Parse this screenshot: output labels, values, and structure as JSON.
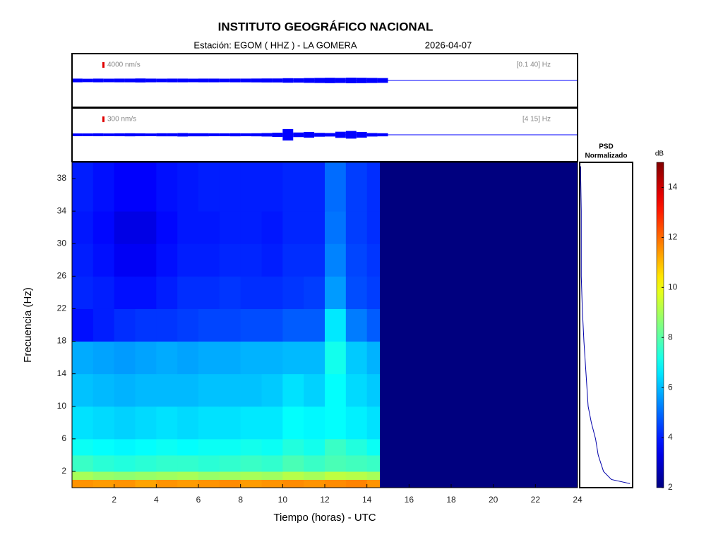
{
  "header": {
    "title": "INSTITUTO GEOGRÁFICO NACIONAL",
    "station": "Estación:  EGOM ( HHZ ) - LA GOMERA",
    "date": "2026-04-07"
  },
  "chart_data": [
    {
      "type": "trace",
      "scale": {
        "value": 4000,
        "label": "4000 nm/s"
      },
      "band": "[0.1 40] Hz",
      "color": "#0000ff",
      "ylim": [
        -19000,
        19000
      ],
      "xlim": [
        0,
        24
      ],
      "x": [
        0,
        0.5,
        1,
        1.5,
        2,
        2.5,
        3,
        3.5,
        4,
        4.5,
        5,
        5.5,
        6,
        6.5,
        7,
        7.5,
        8,
        8.5,
        9,
        9.5,
        10,
        10.5,
        11,
        11.5,
        12,
        12.5,
        13,
        13.5,
        14,
        14.5
      ],
      "values": [
        1300,
        1200,
        1300,
        1250,
        1300,
        1300,
        1400,
        1300,
        1250,
        1300,
        1300,
        1250,
        1300,
        1300,
        1250,
        1300,
        1300,
        1350,
        1400,
        1400,
        1600,
        1500,
        1700,
        1800,
        1900,
        1800,
        2000,
        1900,
        1800,
        1700
      ]
    },
    {
      "type": "trace",
      "scale": {
        "value": 300,
        "label": "300 nm/s"
      },
      "band": "[4 15] Hz",
      "color": "#0000ff",
      "ylim": [
        -1400,
        1400
      ],
      "xlim": [
        0,
        24
      ],
      "x": [
        0,
        0.5,
        1,
        1.5,
        2,
        2.5,
        3,
        3.5,
        4,
        4.5,
        5,
        5.5,
        6,
        6.5,
        7,
        7.5,
        8,
        8.5,
        9,
        9.5,
        10,
        10.5,
        11,
        11.5,
        12,
        12.5,
        13,
        13.5,
        14,
        14.5
      ],
      "values": [
        70,
        70,
        75,
        70,
        75,
        80,
        75,
        70,
        80,
        80,
        90,
        80,
        80,
        75,
        75,
        80,
        75,
        80,
        90,
        110,
        300,
        120,
        150,
        100,
        90,
        160,
        200,
        150,
        90,
        80
      ]
    },
    {
      "type": "heatmap",
      "xlabel": "Tiempo (horas) - UTC",
      "ylabel": "Frecuencia  (Hz)",
      "xlim": [
        0,
        24
      ],
      "xticks": [
        2,
        4,
        6,
        8,
        10,
        12,
        14,
        16,
        18,
        20,
        22,
        24
      ],
      "ylim": [
        0,
        40
      ],
      "yticks": [
        2,
        6,
        10,
        14,
        18,
        22,
        26,
        30,
        34,
        38
      ],
      "time_edges": [
        0,
        1,
        2,
        3,
        4,
        5,
        6,
        7,
        8,
        9,
        10,
        11,
        12,
        13,
        14,
        14.6
      ],
      "freq_edges": [
        0,
        1,
        2,
        4,
        6,
        10,
        14,
        18,
        22,
        26,
        30,
        34,
        40
      ],
      "colormap": "jet",
      "clim": [
        2,
        15
      ],
      "cticks": [
        2,
        4,
        6,
        8,
        10,
        12,
        14
      ],
      "clabel": "dB",
      "z": [
        [
          11.5,
          11.4,
          11.5,
          11.3,
          11.5,
          11.4,
          11.5,
          11.6,
          11.4,
          11.5,
          11.6,
          11.5,
          11.6,
          11.7,
          11.5
        ],
        [
          9,
          8.8,
          8.7,
          8.8,
          8.9,
          9,
          8.8,
          8.9,
          9,
          8.9,
          9.2,
          9,
          9.3,
          9.2,
          9
        ],
        [
          7.6,
          7.4,
          7.3,
          7.4,
          7.5,
          7.5,
          7.4,
          7.5,
          7.6,
          7.5,
          7.8,
          7.6,
          7.8,
          7.7,
          7.6
        ],
        [
          7,
          6.9,
          6.8,
          6.9,
          7,
          6.9,
          7,
          7,
          7.1,
          7,
          7.3,
          7.1,
          7.6,
          7.3,
          7
        ],
        [
          6.5,
          6.4,
          6.3,
          6.4,
          6.5,
          6.4,
          6.5,
          6.5,
          6.6,
          6.6,
          6.9,
          6.8,
          6.9,
          6.7,
          6.5
        ],
        [
          6.1,
          6,
          5.9,
          6,
          6,
          6,
          6.1,
          6.1,
          6.1,
          6.2,
          6.5,
          6.3,
          6.9,
          6.4,
          6.2
        ],
        [
          5.8,
          5.7,
          5.6,
          5.7,
          5.8,
          5.7,
          5.8,
          5.8,
          5.9,
          5.9,
          6,
          6,
          7.1,
          6.2,
          5.9
        ],
        [
          3.8,
          4,
          4.2,
          4.3,
          4.3,
          4.4,
          4.5,
          4.5,
          4.6,
          4.6,
          4.8,
          4.8,
          6.6,
          5.2,
          4.8
        ],
        [
          4.1,
          4,
          3.8,
          3.8,
          4,
          4.2,
          4.2,
          4.3,
          4.2,
          4.2,
          4.3,
          4.4,
          5.6,
          4.6,
          4.4
        ],
        [
          4,
          3.8,
          3.5,
          3.5,
          3.8,
          4,
          4,
          4.1,
          4.1,
          4,
          4.2,
          4.2,
          5.3,
          4.5,
          4.3
        ],
        [
          3.9,
          3.7,
          3.3,
          3.3,
          3.7,
          3.9,
          3.9,
          4,
          4,
          3.9,
          4.1,
          4.1,
          5.1,
          4.4,
          4.2
        ],
        [
          4,
          3.8,
          3.6,
          3.6,
          3.8,
          3.9,
          4,
          4,
          4,
          4,
          4.1,
          4.1,
          5,
          4.4,
          4.2
        ]
      ]
    },
    {
      "type": "psd",
      "title": "PSD",
      "subtitle": "Normalizado",
      "color": "#0000aa",
      "xlim": [
        0,
        1
      ],
      "frequencies": [
        0.5,
        1,
        2,
        3,
        4,
        6,
        8,
        10,
        12,
        14,
        18,
        22,
        26,
        30,
        34,
        38,
        39.5
      ],
      "values": [
        0.95,
        0.6,
        0.45,
        0.4,
        0.35,
        0.3,
        0.22,
        0.16,
        0.14,
        0.12,
        0.08,
        0.05,
        0.03,
        0.03,
        0.03,
        0.02,
        0.02
      ]
    }
  ]
}
